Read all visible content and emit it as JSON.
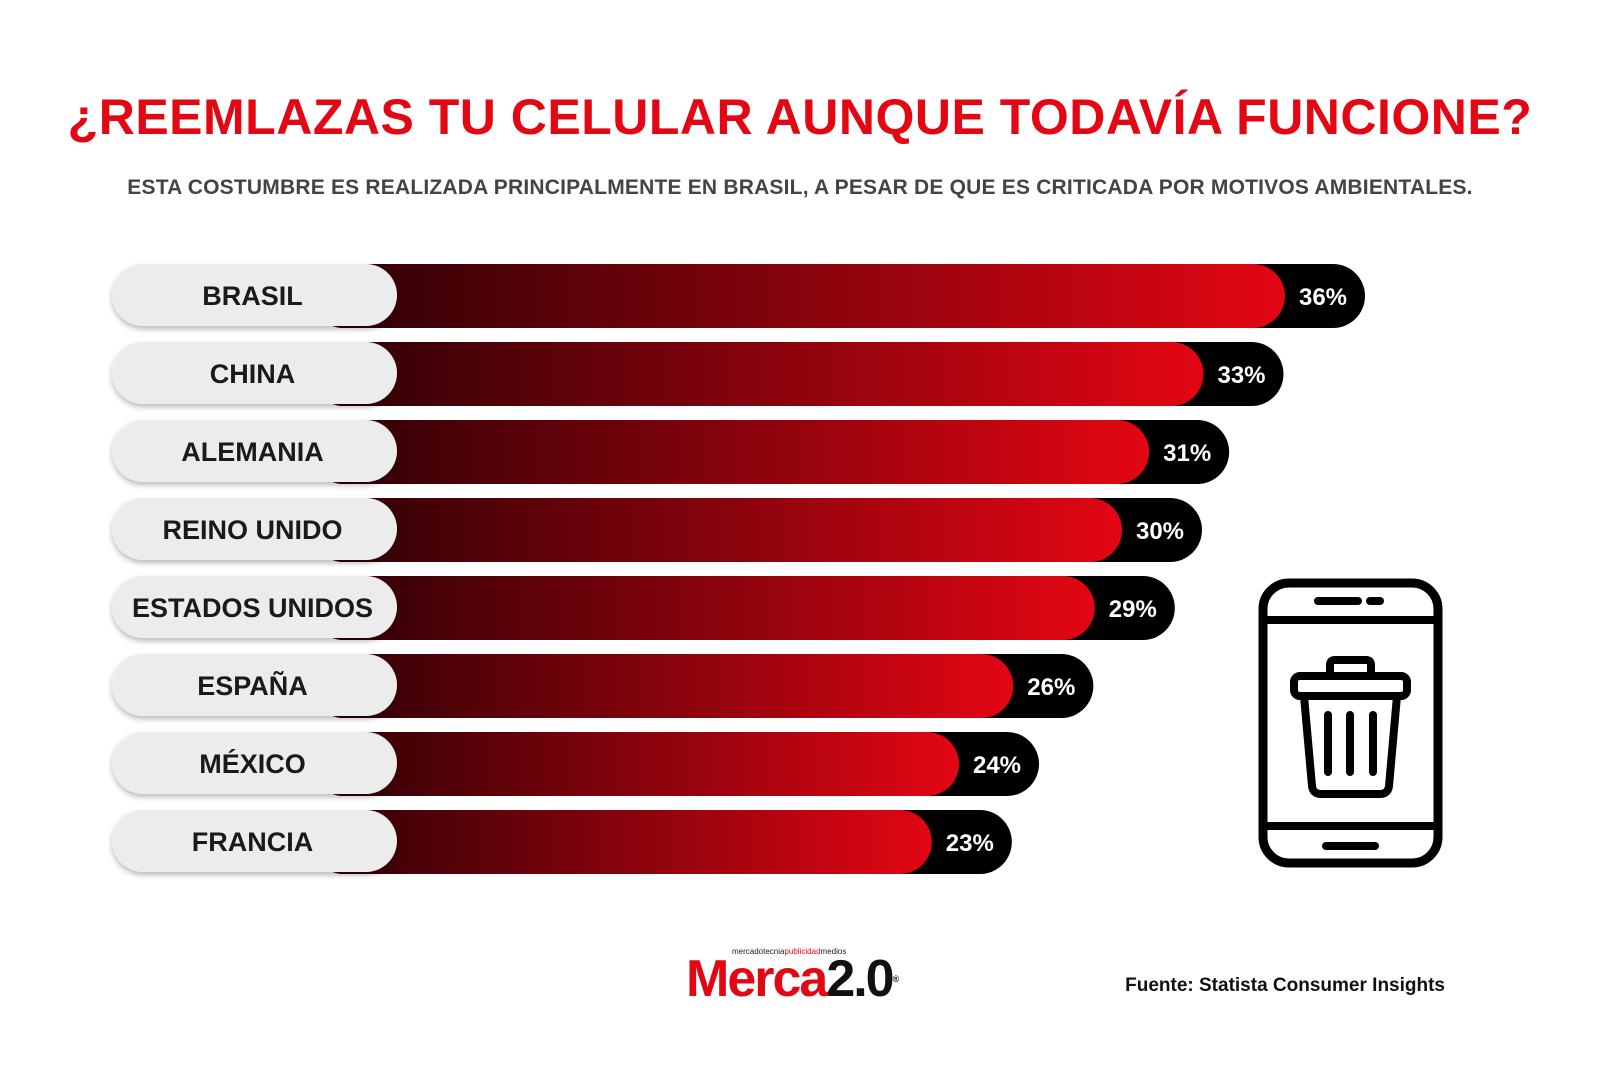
{
  "title": "¿REEMLAZAS TU CELULAR AUNQUE TODAVÍA FUNCIONE?",
  "subtitle": "ESTA COSTUMBRE ES REALIZADA PRINCIPALMENTE EN BRASIL, A PESAR DE QUE ES CRITICADA POR MOTIVOS AMBIENTALES.",
  "colors": {
    "accent": "#e30613",
    "bar_gradient_start": "#2a0005",
    "bar_gradient_end": "#e30613",
    "value_cap": "#000000",
    "label_pill": "#ececec"
  },
  "icon": "phone-trash-icon",
  "logo": {
    "tagline_parts": [
      "mercadotecnia",
      "publicidad",
      "medios"
    ],
    "brand": "Merca",
    "version": "2.0",
    "mark": "®"
  },
  "source": "Fuente: Statista Consumer Insights",
  "chart_data": {
    "type": "bar",
    "orientation": "horizontal",
    "categories": [
      "BRASIL",
      "CHINA",
      "ALEMANIA",
      "REINO UNIDO",
      "ESTADOS UNIDOS",
      "ESPAÑA",
      "MÉXICO",
      "FRANCIA"
    ],
    "values": [
      36,
      33,
      31,
      30,
      29,
      26,
      24,
      23
    ],
    "value_labels": [
      "36%",
      "33%",
      "31%",
      "30%",
      "29%",
      "26%",
      "24%",
      "23%"
    ],
    "unit": "%",
    "title": "¿REEMLAZAS TU CELULAR AUNQUE TODAVÍA FUNCIONE?",
    "subtitle": "ESTA COSTUMBRE ES REALIZADA PRINCIPALMENTE EN BRASIL, A PESAR DE QUE ES CRITICADA POR MOTIVOS AMBIENTALES.",
    "xlabel": "",
    "ylabel": "",
    "grid": false,
    "legend": "none"
  }
}
